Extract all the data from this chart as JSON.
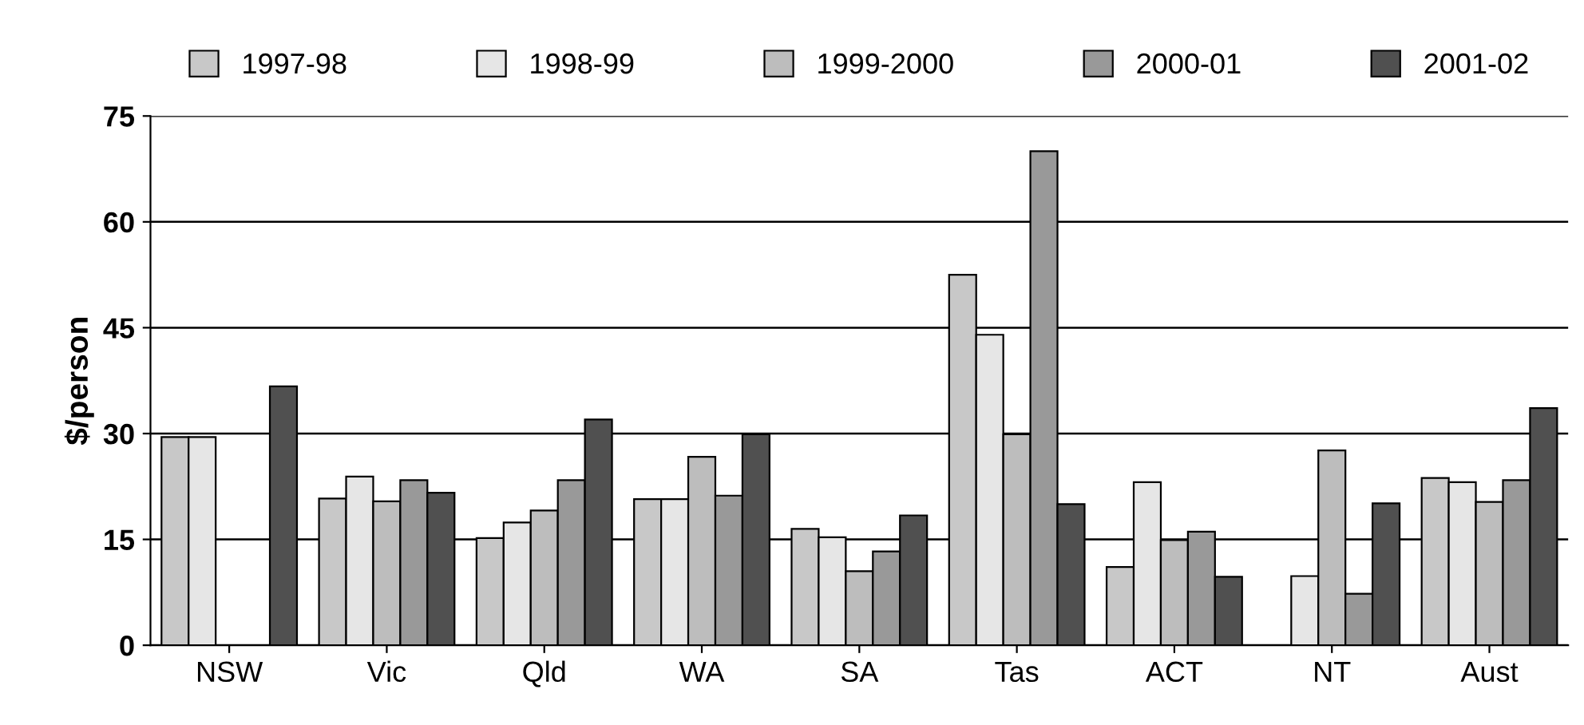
{
  "chart_data": {
    "type": "bar",
    "ylabel": "$/person",
    "categories": [
      "NSW",
      "Vic",
      "Qld",
      "WA",
      "SA",
      "Tas",
      "ACT",
      "NT",
      "Aust"
    ],
    "series": [
      {
        "name": "1997-98",
        "color": "#c8c8c8",
        "values": [
          29.5,
          20.8,
          15.2,
          20.7,
          16.5,
          52.5,
          11.1,
          null,
          23.7
        ]
      },
      {
        "name": "1998-99",
        "color": "#e6e6e6",
        "values": [
          29.5,
          23.9,
          17.4,
          20.7,
          15.3,
          44,
          23.1,
          9.8,
          23.1
        ]
      },
      {
        "name": "1999-2000",
        "color": "#bdbdbd",
        "values": [
          null,
          20.4,
          19.1,
          26.7,
          10.5,
          29.9,
          14.9,
          27.6,
          20.3
        ]
      },
      {
        "name": "2000-01",
        "color": "#999999",
        "values": [
          null,
          23.4,
          23.4,
          21.2,
          13.3,
          70,
          16.1,
          7.3,
          23.4
        ]
      },
      {
        "name": "2001-02",
        "color": "#505050",
        "values": [
          36.7,
          21.6,
          32,
          29.9,
          18.4,
          20,
          9.7,
          20.1,
          33.6
        ]
      }
    ],
    "ylim": [
      0,
      75
    ],
    "yticks": [
      0,
      15,
      30,
      45,
      60,
      75
    ],
    "grid": "y",
    "legend": "top"
  }
}
